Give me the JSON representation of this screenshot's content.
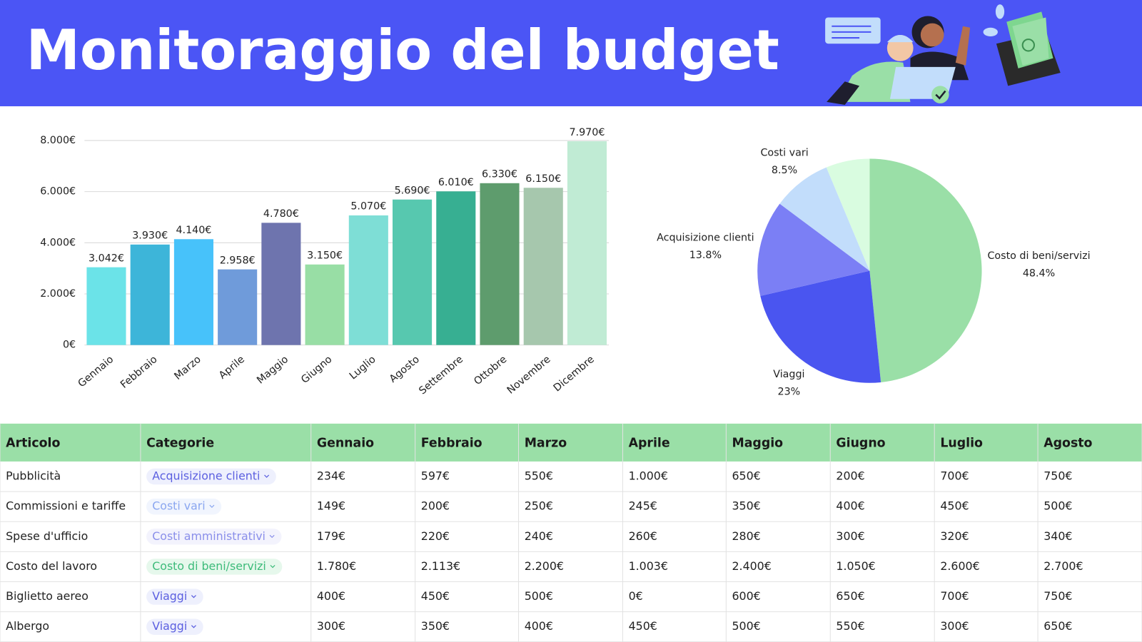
{
  "header": {
    "title": "Monitoraggio del budget"
  },
  "chart_data": [
    {
      "type": "bar",
      "categories": [
        "Gennaio",
        "Febbraio",
        "Marzo",
        "Aprile",
        "Maggio",
        "Giugno",
        "Luglio",
        "Agosto",
        "Settembre",
        "Ottobre",
        "Novembre",
        "Dicembre"
      ],
      "values": [
        3042,
        3930,
        4140,
        2958,
        4780,
        3150,
        5070,
        5690,
        6010,
        6330,
        6150,
        7970
      ],
      "value_labels": [
        "3.042€",
        "3.930€",
        "4.140€",
        "2.958€",
        "4.780€",
        "3.150€",
        "5.070€",
        "5.690€",
        "6.010€",
        "6.330€",
        "6.150€",
        "7.970€"
      ],
      "colors": [
        "#6be3e8",
        "#3db5d9",
        "#47c2fa",
        "#6f9bda",
        "#6e74ae",
        "#98dea5",
        "#7eded6",
        "#57c8af",
        "#37af92",
        "#5e9c6d",
        "#a6c7ad",
        "#c0ebd4"
      ],
      "ylim": [
        0,
        8000
      ],
      "yticks": [
        {
          "value": 0,
          "label": "0€"
        },
        {
          "value": 2000,
          "label": "2.000€"
        },
        {
          "value": 4000,
          "label": "4.000€"
        },
        {
          "value": 6000,
          "label": "6.000€"
        },
        {
          "value": 8000,
          "label": "8.000€"
        }
      ],
      "grid": true
    },
    {
      "type": "pie",
      "categories": [
        "Costo di beni/servizi",
        "Viaggi",
        "Acquisizione clienti",
        "Costi vari",
        null
      ],
      "values": [
        48.4,
        23,
        13.8,
        8.5,
        6.3
      ],
      "value_labels": [
        "48.4%",
        "23%",
        "13.8%",
        "8.5%",
        null
      ],
      "colors": [
        "#9adfa7",
        "#4a55f0",
        "#7b7ff5",
        "#c2ddfb",
        "#d9fce0"
      ]
    }
  ],
  "table": {
    "header": [
      "Articolo",
      "Categorie",
      "Gennaio",
      "Febbraio",
      "Marzo",
      "Aprile",
      "Maggio",
      "Giugno",
      "Luglio",
      "Agosto"
    ],
    "rows": [
      [
        "Pubblicità",
        "Acquisizione clienti",
        "234€",
        "597€",
        "550€",
        "1.000€",
        "650€",
        "200€",
        "700€",
        "750€"
      ],
      [
        "Commissioni e tariffe",
        "Costi vari",
        "149€",
        "200€",
        "250€",
        "245€",
        "350€",
        "400€",
        "450€",
        "500€"
      ],
      [
        "Spese d'ufficio",
        "Costi amministrativi",
        "179€",
        "220€",
        "240€",
        "260€",
        "280€",
        "300€",
        "320€",
        "340€"
      ],
      [
        "Costo del lavoro",
        "Costo di beni/servizi",
        "1.780€",
        "2.113€",
        "2.200€",
        "1.003€",
        "2.400€",
        "1.050€",
        "2.600€",
        "2.700€"
      ],
      [
        "Biglietto aereo",
        "Viaggi",
        "400€",
        "450€",
        "500€",
        "0€",
        "600€",
        "650€",
        "700€",
        "750€"
      ],
      [
        "Albergo",
        "Viaggi",
        "300€",
        "350€",
        "400€",
        "450€",
        "500€",
        "550€",
        "300€",
        "650€"
      ]
    ],
    "tag_colors": [
      {
        "text": "#5b5fe0",
        "fill": "#eef0fd"
      },
      {
        "text": "#8aa6f0",
        "fill": "#f1f5fe"
      },
      {
        "text": "#8a8fea",
        "fill": "#f3f3fd"
      },
      {
        "text": "#3dbb7a",
        "fill": "#e6f8ec"
      },
      {
        "text": "#5b5fe0",
        "fill": "#eef0fd"
      },
      {
        "text": "#5b5fe0",
        "fill": "#eef0fd"
      }
    ],
    "header_color": "#9adfa7"
  }
}
